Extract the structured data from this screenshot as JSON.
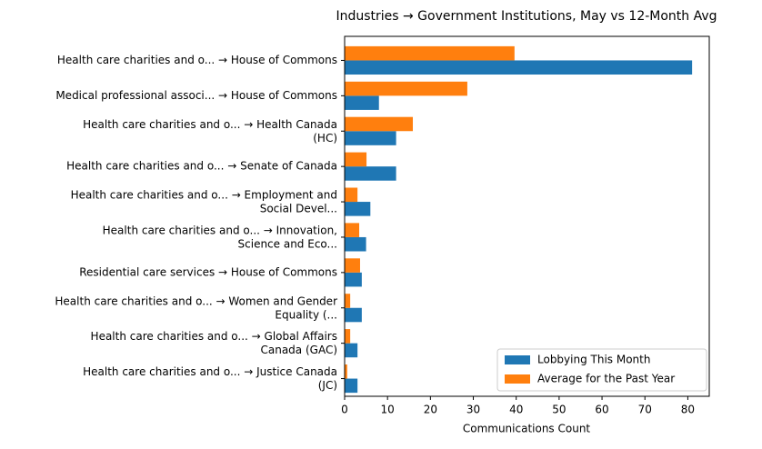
{
  "chart_data": {
    "type": "grouped-hbar",
    "title": "Industries → Government Institutions, May vs 12-Month Avg",
    "x_label": "Communications Count",
    "categories": [
      "Health care charities and o... → House of Commons",
      "Medical professional associ... → House of Commons",
      "Health care charities and o... → Health Canada\n(HC)",
      "Health care charities and o... → Senate of Canada",
      "Health care charities and o... → Employment and\nSocial Devel...",
      "Health care charities and o... → Innovation,\nScience and Eco...",
      "Residential care services → House of Commons",
      "Health care charities and o... → Women and Gender\nEquality (...",
      "Health care charities and o... → Global Affairs\nCanada (GAC)",
      "Health care charities and o... → Justice Canada\n(JC)"
    ],
    "series": [
      {
        "name": "Lobbying This Month",
        "color": "#1f77b4",
        "values": [
          81,
          8,
          12,
          12,
          6,
          5,
          4,
          4,
          3,
          3
        ]
      },
      {
        "name": "Average for the Past Year",
        "color": "#ff7f0e",
        "values": [
          39.6,
          28.6,
          15.9,
          5.1,
          3.0,
          3.4,
          3.6,
          1.3,
          1.3,
          0.6
        ]
      }
    ],
    "xlim": [
      0,
      85
    ],
    "xticks": [
      0,
      10,
      20,
      30,
      40,
      50,
      60,
      70,
      80
    ],
    "legend": "lower right"
  }
}
